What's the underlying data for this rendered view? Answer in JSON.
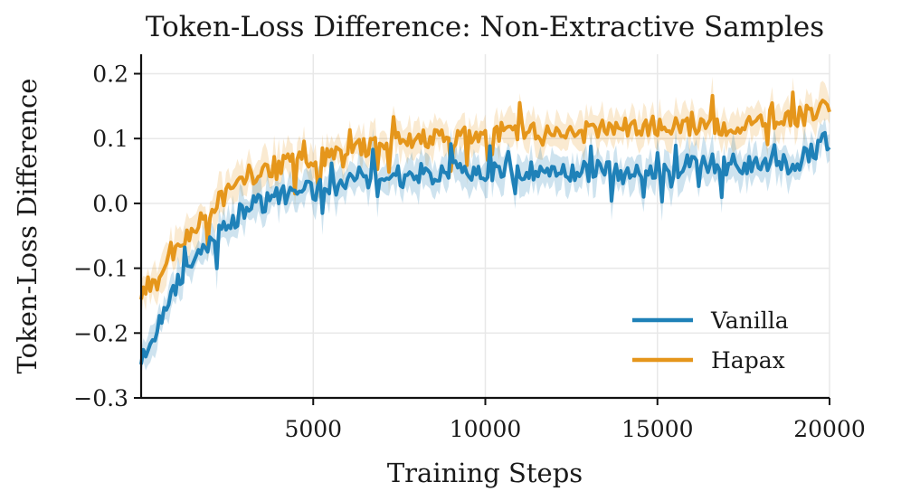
{
  "chart_data": {
    "type": "line",
    "title": "Token-Loss Difference: Non-Extractive Samples",
    "xlabel": "Training Steps",
    "ylabel": "Token-Loss Difference",
    "xlim": [
      0,
      20000
    ],
    "ylim": [
      -0.3,
      0.23
    ],
    "xticks": [
      5000,
      10000,
      15000,
      20000
    ],
    "xtick_labels": [
      "5000",
      "10000",
      "15000",
      "20000"
    ],
    "yticks": [
      0.2,
      0.1,
      0.0,
      -0.1,
      -0.2,
      -0.3
    ],
    "ytick_labels": [
      "0.2",
      "0.1",
      "0.0",
      "−0.1",
      "−0.2",
      "−0.3"
    ],
    "grid": true,
    "legend_position": "lower-right",
    "band": "shaded uncertainty band around each series",
    "series": [
      {
        "name": "Vanilla",
        "color": "#1f81b8",
        "x": [
          0,
          1000,
          2000,
          3000,
          4000,
          5000,
          6000,
          7000,
          8000,
          9000,
          10000,
          11000,
          12000,
          13000,
          14000,
          15000,
          16000,
          17000,
          18000,
          19000,
          20000
        ],
        "values": [
          -0.24,
          -0.13,
          -0.06,
          -0.01,
          0.01,
          0.02,
          0.03,
          0.04,
          0.04,
          0.05,
          0.05,
          0.05,
          0.05,
          0.05,
          0.05,
          0.05,
          0.06,
          0.06,
          0.06,
          0.06,
          0.1
        ]
      },
      {
        "name": "Hapax",
        "color": "#e5961b",
        "x": [
          0,
          1000,
          2000,
          3000,
          4000,
          5000,
          6000,
          7000,
          8000,
          9000,
          10000,
          11000,
          12000,
          13000,
          14000,
          15000,
          16000,
          17000,
          18000,
          19000,
          20000
        ],
        "values": [
          -0.14,
          -0.08,
          -0.01,
          0.04,
          0.06,
          0.07,
          0.08,
          0.09,
          0.1,
          0.1,
          0.11,
          0.11,
          0.11,
          0.11,
          0.12,
          0.12,
          0.12,
          0.12,
          0.13,
          0.13,
          0.15
        ]
      }
    ]
  }
}
